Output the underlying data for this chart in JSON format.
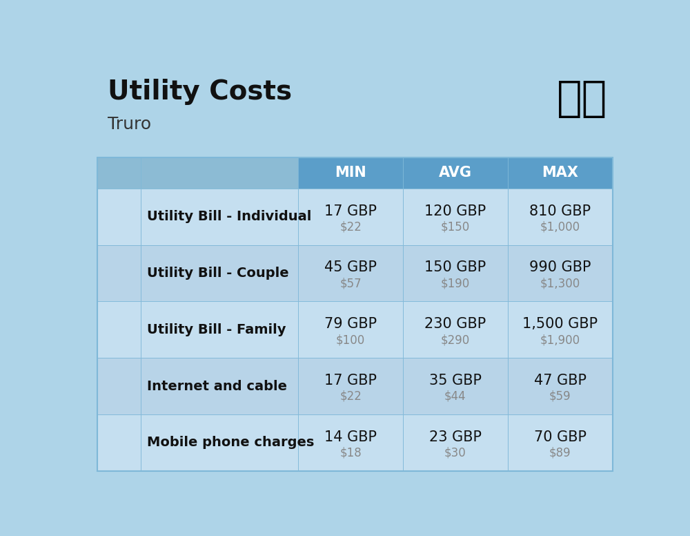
{
  "title": "Utility Costs",
  "subtitle": "Truro",
  "background_color": "#aed4e8",
  "header_bg_color": "#5b9ec9",
  "row_bg_color_light": "#c5dff0",
  "row_bg_color_dark": "#b8d4e8",
  "header_text_color": "#ffffff",
  "header_labels": [
    "MIN",
    "AVG",
    "MAX"
  ],
  "rows": [
    {
      "label": "Utility Bill - Individual",
      "min_gbp": "17 GBP",
      "min_usd": "$22",
      "avg_gbp": "120 GBP",
      "avg_usd": "$150",
      "max_gbp": "810 GBP",
      "max_usd": "$1,000"
    },
    {
      "label": "Utility Bill - Couple",
      "min_gbp": "45 GBP",
      "min_usd": "$57",
      "avg_gbp": "150 GBP",
      "avg_usd": "$190",
      "max_gbp": "990 GBP",
      "max_usd": "$1,300"
    },
    {
      "label": "Utility Bill - Family",
      "min_gbp": "79 GBP",
      "min_usd": "$100",
      "avg_gbp": "230 GBP",
      "avg_usd": "$290",
      "max_gbp": "1,500 GBP",
      "max_usd": "$1,900"
    },
    {
      "label": "Internet and cable",
      "min_gbp": "17 GBP",
      "min_usd": "$22",
      "avg_gbp": "35 GBP",
      "avg_usd": "$44",
      "max_gbp": "47 GBP",
      "max_usd": "$59"
    },
    {
      "label": "Mobile phone charges",
      "min_gbp": "14 GBP",
      "min_usd": "$18",
      "avg_gbp": "23 GBP",
      "avg_usd": "$30",
      "max_gbp": "70 GBP",
      "max_usd": "$89"
    }
  ],
  "title_fontsize": 28,
  "subtitle_fontsize": 18,
  "header_fontsize": 15,
  "label_fontsize": 14,
  "value_fontsize": 15,
  "usd_fontsize": 12
}
